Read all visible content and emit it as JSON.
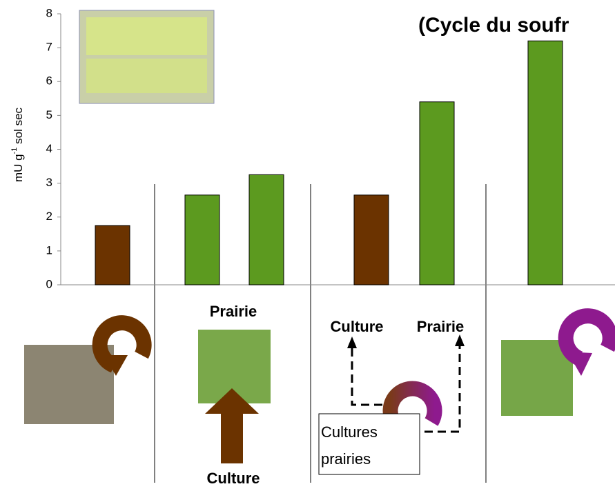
{
  "chart_data": {
    "type": "bar",
    "title": "(Cycle du soufr",
    "y_label": [
      "mU g",
      "-1",
      " sol sec"
    ],
    "categories": [
      null,
      null,
      null,
      null,
      null,
      null
    ],
    "values": [
      1.75,
      2.65,
      3.25,
      2.65,
      5.4,
      7.2
    ],
    "colors": [
      "#6b3300",
      "#5c9a1f",
      "#5c9a1f",
      "#6b3300",
      "#5c9a1f",
      "#5c9a1f"
    ],
    "ylim": [
      0,
      8
    ],
    "yticks": [
      0,
      1,
      2,
      3,
      4,
      5,
      6,
      7,
      8
    ]
  },
  "annotations": {
    "prairie_1": "Prairie",
    "culture_1": "Culture",
    "culture_2": "Culture",
    "prairie_2": "Prairie",
    "box": [
      "Cultures",
      "prairies"
    ]
  }
}
